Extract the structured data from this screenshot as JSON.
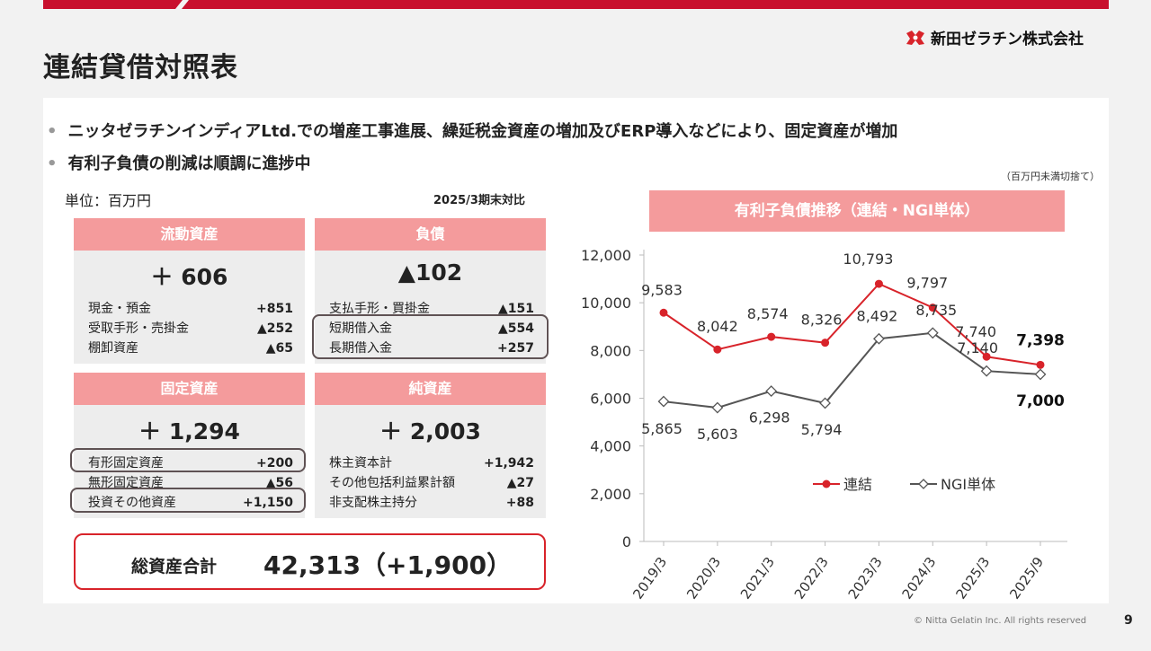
{
  "header": {
    "title": "連結貸借対照表",
    "logo_text": "新田ゼラチン株式会社"
  },
  "bullets": [
    "ニッタゼラチンインディアLtd.での増産工事進展、繰延税金資産の増加及びERP導入などにより、固定資産が増加",
    "有利子負債の削減は順調に進捗中"
  ],
  "note": "（百万円未満切捨て）",
  "unit_label": "単位：百万円",
  "comparison_label": "2025/3期末対比",
  "cards": {
    "current_assets": {
      "title": "流動資産",
      "total": "＋ 606",
      "rows": [
        {
          "label": "現金・預金",
          "value": "+851"
        },
        {
          "label": "受取手形・売掛金",
          "value": "▲252"
        },
        {
          "label": "棚卸資産",
          "value": "▲65"
        }
      ]
    },
    "liabilities": {
      "title": "負債",
      "total": "▲102",
      "rows": [
        {
          "label": "支払手形・買掛金",
          "value": "▲151"
        },
        {
          "label": "短期借入金",
          "value": "▲554"
        },
        {
          "label": "長期借入金",
          "value": "+257"
        }
      ]
    },
    "fixed_assets": {
      "title": "固定資産",
      "total": "＋ 1,294",
      "rows": [
        {
          "label": "有形固定資産",
          "value": "+200"
        },
        {
          "label": "無形固定資産",
          "value": "▲56"
        },
        {
          "label": "投資その他資産",
          "value": "+1,150"
        }
      ]
    },
    "net_assets": {
      "title": "純資産",
      "total": "＋ 2,003",
      "rows": [
        {
          "label": "株主資本計",
          "value": "+1,942"
        },
        {
          "label": "その他包括利益累計額",
          "value": "▲27"
        },
        {
          "label": "非支配株主持分",
          "value": "+88"
        }
      ]
    }
  },
  "total_assets": {
    "label": "総資産合計",
    "value": "42,313（+1,900）"
  },
  "chart_title": "有利子負債推移（連結・NGI単体）",
  "chart_data": {
    "type": "line",
    "title": "有利子負債推移（連結・NGI単体）",
    "categories": [
      "2019/3",
      "2020/3",
      "2021/3",
      "2022/3",
      "2023/3",
      "2024/3",
      "2025/3",
      "2025/9"
    ],
    "series": [
      {
        "name": "連結",
        "color": "#d8232a",
        "marker": "circle",
        "values": [
          9583,
          8042,
          8574,
          8326,
          10793,
          9797,
          7740,
          7398
        ],
        "labels": [
          "9,583",
          "8,042",
          "8,574",
          "8,326",
          "10,793",
          "9,797",
          "7,740",
          "7,398"
        ]
      },
      {
        "name": "NGI単体",
        "color": "#555555",
        "marker": "diamond",
        "values": [
          5865,
          5603,
          6298,
          5794,
          8492,
          8735,
          7140,
          7000
        ],
        "labels": [
          "5,865",
          "5,603",
          "6,298",
          "5,794",
          "8,492",
          "8,735",
          "7,140",
          "7,000"
        ]
      }
    ],
    "yticks": [
      "0",
      "2,000",
      "4,000",
      "6,000",
      "8,000",
      "10,000",
      "12,000"
    ],
    "ylim": [
      0,
      12000
    ],
    "legend": "bottom-center"
  },
  "footer": {
    "copyright": "© Nitta Gelatin Inc. All rights reserved",
    "page": "9"
  },
  "colors": {
    "accent": "#d8232a",
    "card_header": "#f49b9c",
    "card_bg": "#ededed",
    "outline": "#5f5254"
  }
}
